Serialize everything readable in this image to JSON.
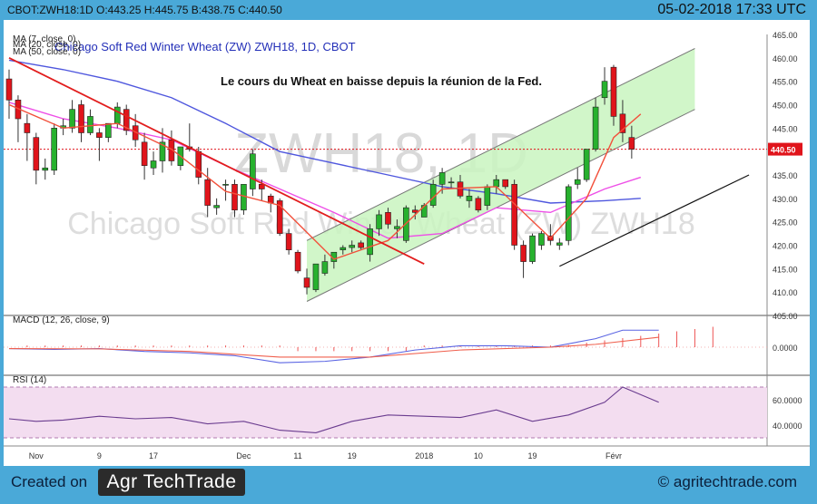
{
  "header": {
    "quote": "CBOT:ZWH18:1D O:443.25 H:445.75 B:438.75 C:440.50",
    "datetime": "05-02-2018 17:33 UTC"
  },
  "footer": {
    "created_on": "Created on",
    "logo_text": "Agr TechTrade",
    "website": "© agritechtrade.com"
  },
  "colors": {
    "up": "#27b12e",
    "down": "#e0141b",
    "ma7": "#f2503b",
    "ma20": "#ee4fe7",
    "ma50": "#4f57de",
    "channel": "#c9f5c0",
    "trend_down": "#e21d1d",
    "macd": "#5a64e3",
    "signal": "#f0604e",
    "rsi": "#6a3c8f"
  },
  "chart_data": [
    {
      "type": "candlestick",
      "title": "Chicago Soft Red Winter Wheat (ZW) ZWH18, 1D, CBOT",
      "annotation": "Le cours du Wheat en baisse depuis la réunion de la Fed.",
      "watermark": [
        "ZWH18, 1D",
        "Chicago Soft Red Winter Wheat (ZW) ZWH18"
      ],
      "series_labels": [
        "MA (7, close, 0)",
        "MA (20, close, 0)",
        "MA (50, close, 0)"
      ],
      "last_price_label": "440.50",
      "ylim": [
        405,
        465
      ],
      "y_ticks": [
        "465.00",
        "460.00",
        "455.00",
        "450.00",
        "445.00",
        "440.00",
        "435.00",
        "430.00",
        "425.00",
        "420.00",
        "415.00",
        "410.00",
        "405.00"
      ],
      "x_ticks": [
        {
          "i": 3,
          "label": "Nov"
        },
        {
          "i": 10,
          "label": "9"
        },
        {
          "i": 16,
          "label": "17"
        },
        {
          "i": 26,
          "label": "Dec"
        },
        {
          "i": 32,
          "label": "11"
        },
        {
          "i": 38,
          "label": "19"
        },
        {
          "i": 46,
          "label": "2018"
        },
        {
          "i": 52,
          "label": "10"
        },
        {
          "i": 58,
          "label": "19"
        },
        {
          "i": 67,
          "label": "Févr"
        }
      ],
      "ohlc": [
        [
          455.5,
          457.5,
          447.0,
          451.0
        ],
        [
          451.0,
          452.0,
          442.0,
          447.0
        ],
        [
          446.0,
          448.0,
          438.0,
          444.0
        ],
        [
          443.0,
          444.0,
          433.0,
          436.0
        ],
        [
          436.0,
          438.5,
          434.0,
          436.5
        ],
        [
          436.0,
          446.0,
          435.0,
          445.0
        ],
        [
          445.0,
          447.0,
          443.5,
          445.5
        ],
        [
          445.0,
          451.0,
          444.0,
          449.0
        ],
        [
          450.0,
          451.0,
          442.0,
          444.0
        ],
        [
          444.0,
          449.0,
          443.5,
          447.5
        ],
        [
          444.0,
          445.0,
          438.0,
          443.0
        ],
        [
          443.0,
          446.0,
          442.0,
          446.0
        ],
        [
          446.0,
          450.5,
          445.0,
          449.5
        ],
        [
          449.0,
          450.0,
          443.5,
          444.5
        ],
        [
          445.5,
          448.0,
          441.0,
          442.5
        ],
        [
          442.0,
          444.0,
          434.0,
          437.0
        ],
        [
          436.5,
          440.0,
          435.0,
          438.0
        ],
        [
          438.0,
          445.0,
          435.5,
          442.0
        ],
        [
          442.5,
          444.5,
          437.0,
          438.0
        ],
        [
          437.0,
          441.0,
          436.0,
          441.0
        ],
        [
          441.0,
          446.0,
          440.0,
          440.5
        ],
        [
          440.0,
          441.0,
          433.0,
          434.5
        ],
        [
          434.0,
          436.5,
          426.0,
          428.5
        ],
        [
          428.0,
          430.0,
          426.5,
          428.5
        ],
        [
          433.0,
          434.0,
          429.5,
          433.0
        ],
        [
          433.0,
          434.0,
          426.0,
          427.5
        ],
        [
          427.5,
          433.0,
          426.5,
          433.0
        ],
        [
          432.0,
          440.5,
          430.5,
          439.5
        ],
        [
          433.0,
          434.0,
          429.5,
          432.0
        ],
        [
          430.5,
          431.0,
          427.0,
          429.0
        ],
        [
          429.5,
          430.0,
          422.0,
          422.5
        ],
        [
          422.5,
          423.5,
          418.0,
          419.0
        ],
        [
          418.5,
          419.0,
          414.0,
          414.5
        ],
        [
          413.0,
          415.0,
          409.5,
          411.0
        ],
        [
          410.5,
          416.0,
          410.0,
          416.0
        ],
        [
          414.0,
          418.0,
          413.5,
          416.5
        ],
        [
          416.5,
          418.5,
          415.0,
          418.5
        ],
        [
          419.0,
          420.0,
          418.0,
          419.5
        ],
        [
          419.5,
          421.0,
          418.5,
          420.0
        ],
        [
          420.5,
          421.0,
          419.0,
          419.5
        ],
        [
          418.0,
          424.5,
          416.5,
          423.5
        ],
        [
          423.5,
          427.5,
          422.0,
          426.5
        ],
        [
          427.0,
          428.0,
          423.5,
          424.5
        ],
        [
          423.5,
          425.5,
          421.5,
          424.0
        ],
        [
          421.0,
          428.5,
          420.5,
          428.0
        ],
        [
          427.5,
          428.5,
          425.5,
          427.0
        ],
        [
          426.0,
          429.0,
          426.0,
          428.5
        ],
        [
          428.5,
          434.0,
          428.0,
          433.0
        ],
        [
          433.0,
          436.5,
          431.0,
          435.5
        ],
        [
          433.5,
          434.5,
          432.0,
          433.5
        ],
        [
          433.5,
          435.0,
          430.0,
          430.5
        ],
        [
          429.5,
          432.0,
          428.0,
          430.5
        ],
        [
          430.0,
          430.5,
          427.0,
          427.5
        ],
        [
          428.5,
          433.0,
          427.5,
          432.5
        ],
        [
          432.5,
          435.0,
          431.0,
          434.0
        ],
        [
          434.0,
          434.0,
          432.0,
          432.5
        ],
        [
          433.0,
          434.0,
          419.0,
          420.0
        ],
        [
          420.0,
          421.0,
          413.0,
          416.5
        ],
        [
          416.5,
          422.5,
          416.0,
          422.0
        ],
        [
          420.0,
          423.0,
          419.0,
          422.5
        ],
        [
          422.0,
          424.5,
          420.0,
          421.0
        ],
        [
          420.0,
          421.5,
          419.0,
          420.5
        ],
        [
          421.0,
          433.0,
          420.0,
          432.5
        ],
        [
          433.0,
          436.5,
          432.0,
          434.0
        ],
        [
          434.0,
          440.5,
          433.5,
          440.5
        ],
        [
          440.5,
          451.5,
          440.0,
          449.5
        ],
        [
          451.5,
          458.0,
          450.0,
          455.0
        ],
        [
          458.0,
          458.5,
          445.5,
          447.5
        ],
        [
          448.0,
          451.0,
          442.0,
          444.0
        ],
        [
          443.0,
          445.5,
          438.5,
          440.5
        ]
      ],
      "ma7_x": [
        0,
        6,
        12,
        18,
        24,
        30,
        36,
        42,
        48,
        54,
        60,
        64,
        67,
        70
      ],
      "ma7_y": [
        450,
        445,
        446,
        440.5,
        431.5,
        428.5,
        417,
        421,
        432,
        432.5,
        421.5,
        430,
        443,
        448
      ],
      "ma20_x": [
        0,
        6,
        12,
        18,
        24,
        30,
        36,
        42,
        48,
        54,
        60,
        66,
        70
      ],
      "ma20_y": [
        450.5,
        447,
        445,
        442.5,
        437,
        432,
        427,
        421.5,
        422.5,
        428,
        427,
        432,
        434.5
      ],
      "ma50_x": [
        0,
        6,
        12,
        18,
        24,
        30,
        36,
        42,
        48,
        54,
        60,
        66,
        70
      ],
      "ma50_y": [
        459.5,
        457.5,
        455,
        451.5,
        446,
        440,
        437.5,
        435,
        432.5,
        431,
        429,
        429.5,
        430
      ],
      "channel_upper": [
        [
          33,
          421
        ],
        [
          76,
          462
        ]
      ],
      "channel_lower": [
        [
          33,
          408
        ],
        [
          76,
          449
        ]
      ],
      "channel_box": [
        [
          33,
          408
        ],
        [
          76,
          449
        ],
        [
          76,
          462
        ],
        [
          33,
          421
        ]
      ],
      "trend_down": [
        [
          0,
          460
        ],
        [
          46,
          416
        ]
      ],
      "support_line": [
        [
          61,
          415.5
        ],
        [
          82,
          435
        ]
      ]
    },
    {
      "type": "line",
      "title": "MACD (12, 26, close, 9)",
      "y_ticks": [
        "0.0000"
      ],
      "ylim": [
        -8,
        8
      ],
      "macd_x": [
        0,
        5,
        10,
        15,
        20,
        25,
        30,
        35,
        40,
        45,
        50,
        55,
        60,
        65,
        68,
        72
      ],
      "macd_y": [
        -0.5,
        -0.8,
        -0.5,
        -1.5,
        -2.0,
        -3.0,
        -5.5,
        -5.0,
        -3.5,
        -1.0,
        0.5,
        0.5,
        0.0,
        3.0,
        6.0,
        6.0
      ],
      "signal_x": [
        0,
        10,
        20,
        30,
        40,
        50,
        60,
        65,
        72
      ],
      "signal_y": [
        -0.5,
        -0.6,
        -1.5,
        -3.5,
        -3.5,
        -1.0,
        0.0,
        1.0,
        3.5
      ]
    },
    {
      "type": "line",
      "title": "RSI (14)",
      "y_ticks": [
        "60.0000",
        "40.0000"
      ],
      "ylim": [
        25,
        75
      ],
      "band": [
        30,
        70
      ],
      "rsi_x": [
        0,
        3,
        6,
        10,
        14,
        18,
        22,
        26,
        30,
        34,
        38,
        42,
        46,
        50,
        54,
        58,
        62,
        66,
        68,
        70,
        72
      ],
      "rsi_y": [
        45,
        43,
        44,
        47,
        45,
        46,
        41,
        43,
        36,
        34,
        43,
        48,
        47,
        46,
        52,
        43,
        48,
        58,
        70,
        64,
        58
      ]
    }
  ]
}
